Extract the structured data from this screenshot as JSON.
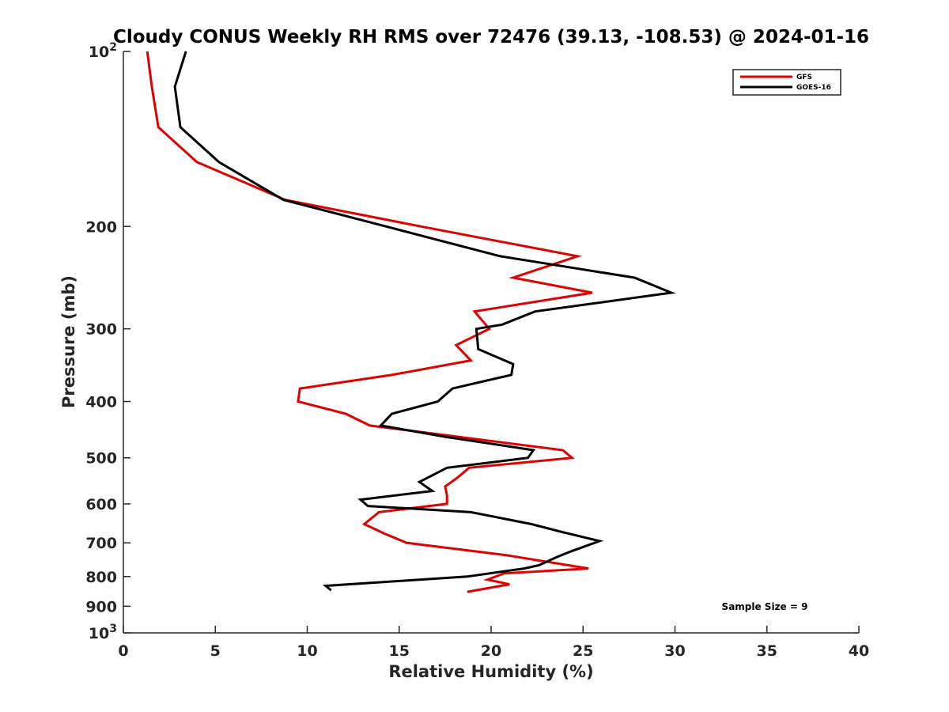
{
  "chart_data": {
    "type": "line",
    "title": "Cloudy CONUS Weekly RH RMS over 72476 (39.13, -108.53) @ 2024-01-16",
    "xlabel": "Relative Humidity (%)",
    "ylabel": "Pressure (mb)",
    "xlim": [
      0,
      40
    ],
    "ylim": [
      100,
      1000
    ],
    "y_scale": "log",
    "y_reversed": true,
    "x_ticks": [
      "0",
      "5",
      "10",
      "15",
      "20",
      "25",
      "30",
      "35",
      "40"
    ],
    "y_ticks": [
      {
        "value": 100,
        "base": "10",
        "exp": "2"
      },
      {
        "value": 200,
        "label": "200"
      },
      {
        "value": 300,
        "label": "300"
      },
      {
        "value": 400,
        "label": "400"
      },
      {
        "value": 500,
        "label": "500"
      },
      {
        "value": 600,
        "label": "600"
      },
      {
        "value": 700,
        "label": "700"
      },
      {
        "value": 800,
        "label": "800"
      },
      {
        "value": 900,
        "label": "900"
      },
      {
        "value": 1000,
        "base": "10",
        "exp": "3"
      }
    ],
    "grid": false,
    "legend_position": "top-right",
    "annotation": "Sample Size = 9",
    "series": [
      {
        "name": "GFS",
        "color": "#e00000",
        "points": [
          {
            "x": 1.3,
            "y": 100
          },
          {
            "x": 1.55,
            "y": 115
          },
          {
            "x": 1.9,
            "y": 135
          },
          {
            "x": 4.0,
            "y": 155
          },
          {
            "x": 8.8,
            "y": 180
          },
          {
            "x": 16.2,
            "y": 200
          },
          {
            "x": 24.7,
            "y": 225
          },
          {
            "x": 21.2,
            "y": 245
          },
          {
            "x": 25.5,
            "y": 260
          },
          {
            "x": 19.1,
            "y": 280
          },
          {
            "x": 19.9,
            "y": 300
          },
          {
            "x": 18.1,
            "y": 320
          },
          {
            "x": 18.9,
            "y": 340
          },
          {
            "x": 14.6,
            "y": 360
          },
          {
            "x": 9.6,
            "y": 380
          },
          {
            "x": 9.5,
            "y": 400
          },
          {
            "x": 12.1,
            "y": 420
          },
          {
            "x": 13.4,
            "y": 440
          },
          {
            "x": 23.9,
            "y": 485
          },
          {
            "x": 24.4,
            "y": 500
          },
          {
            "x": 18.8,
            "y": 520
          },
          {
            "x": 18.2,
            "y": 540
          },
          {
            "x": 17.5,
            "y": 560
          },
          {
            "x": 17.6,
            "y": 580
          },
          {
            "x": 17.6,
            "y": 600
          },
          {
            "x": 13.9,
            "y": 620
          },
          {
            "x": 13.1,
            "y": 650
          },
          {
            "x": 14.2,
            "y": 675
          },
          {
            "x": 15.4,
            "y": 700
          },
          {
            "x": 20.8,
            "y": 735
          },
          {
            "x": 25.3,
            "y": 775
          },
          {
            "x": 20.7,
            "y": 790
          },
          {
            "x": 19.8,
            "y": 810
          },
          {
            "x": 21.0,
            "y": 825
          },
          {
            "x": 18.7,
            "y": 850
          }
        ]
      },
      {
        "name": "GOES-16",
        "color": "#000000",
        "points": [
          {
            "x": 3.4,
            "y": 100
          },
          {
            "x": 2.8,
            "y": 115
          },
          {
            "x": 3.1,
            "y": 135
          },
          {
            "x": 5.2,
            "y": 155
          },
          {
            "x": 8.7,
            "y": 180
          },
          {
            "x": 14.3,
            "y": 200
          },
          {
            "x": 20.5,
            "y": 225
          },
          {
            "x": 27.8,
            "y": 245
          },
          {
            "x": 29.8,
            "y": 260
          },
          {
            "x": 22.4,
            "y": 280
          },
          {
            "x": 20.6,
            "y": 295
          },
          {
            "x": 19.2,
            "y": 300
          },
          {
            "x": 19.3,
            "y": 325
          },
          {
            "x": 21.2,
            "y": 345
          },
          {
            "x": 21.1,
            "y": 360
          },
          {
            "x": 17.9,
            "y": 380
          },
          {
            "x": 17.1,
            "y": 400
          },
          {
            "x": 14.6,
            "y": 420
          },
          {
            "x": 14.0,
            "y": 440
          },
          {
            "x": 17.5,
            "y": 460
          },
          {
            "x": 22.3,
            "y": 485
          },
          {
            "x": 22.0,
            "y": 500
          },
          {
            "x": 17.6,
            "y": 520
          },
          {
            "x": 16.1,
            "y": 550
          },
          {
            "x": 16.8,
            "y": 570
          },
          {
            "x": 12.9,
            "y": 590
          },
          {
            "x": 13.3,
            "y": 605
          },
          {
            "x": 18.9,
            "y": 620
          },
          {
            "x": 22.2,
            "y": 650
          },
          {
            "x": 23.8,
            "y": 670
          },
          {
            "x": 25.9,
            "y": 695
          },
          {
            "x": 24.3,
            "y": 725
          },
          {
            "x": 23.6,
            "y": 740
          },
          {
            "x": 22.6,
            "y": 765
          },
          {
            "x": 21.8,
            "y": 775
          },
          {
            "x": 18.7,
            "y": 800
          },
          {
            "x": 11.0,
            "y": 830
          },
          {
            "x": 11.3,
            "y": 845
          }
        ]
      }
    ]
  }
}
